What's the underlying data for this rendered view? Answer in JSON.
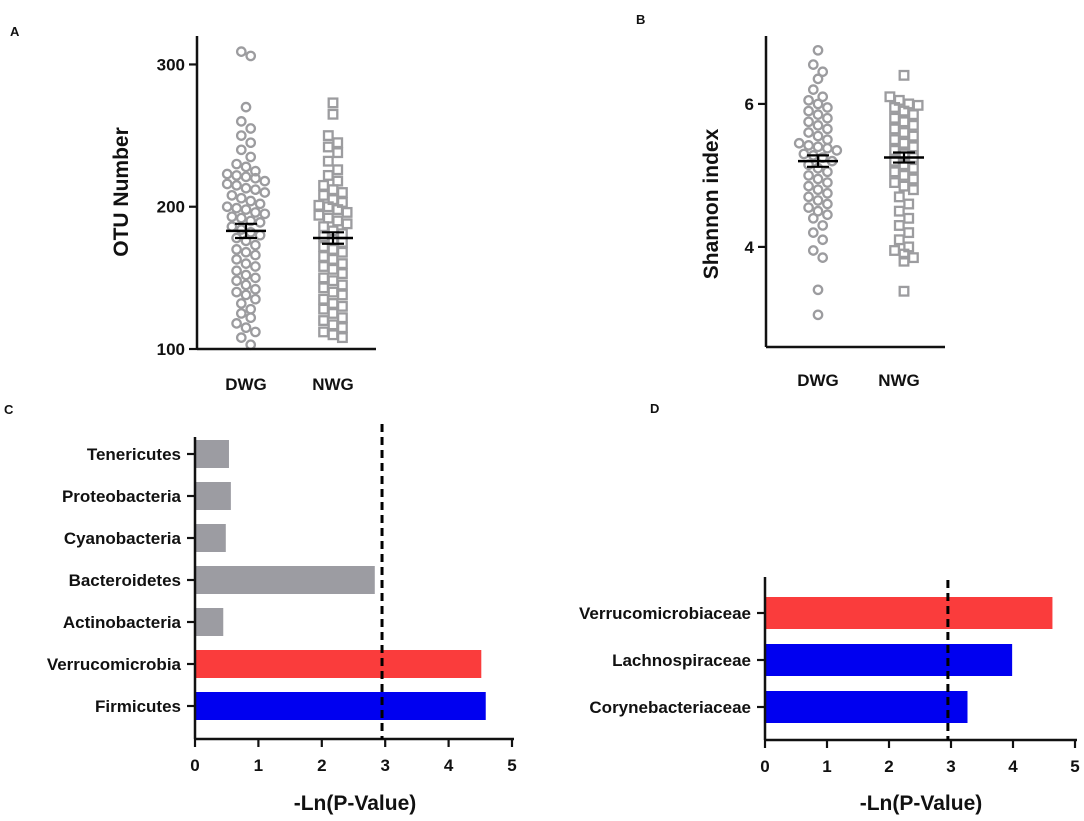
{
  "chart_data": [
    {
      "panel": "A",
      "type": "scatter",
      "title": "",
      "xlabel": "",
      "ylabel": "OTU Number",
      "categories": [
        "DWG",
        "NWG"
      ],
      "ylim": [
        100,
        320
      ],
      "yticks": [
        100,
        200,
        300
      ],
      "marker_color": "#9c9c9f",
      "mean_color": "#000000",
      "series": [
        {
          "name": "DWG",
          "marker": "circle",
          "mean": 183,
          "sem": 5,
          "values": [
            309,
            306,
            270,
            260,
            255,
            250,
            245,
            240,
            235,
            230,
            228,
            225,
            223,
            222,
            221,
            220,
            218,
            216,
            215,
            213,
            212,
            210,
            208,
            206,
            204,
            202,
            200,
            199,
            198,
            196,
            195,
            193,
            192,
            190,
            189,
            186,
            184,
            182,
            180,
            178,
            176,
            173,
            170,
            168,
            166,
            163,
            160,
            158,
            155,
            152,
            150,
            148,
            145,
            142,
            140,
            138,
            135,
            132,
            128,
            125,
            122,
            118,
            115,
            112,
            108,
            103
          ]
        },
        {
          "name": "NWG",
          "marker": "square",
          "mean": 178,
          "sem": 4,
          "values": [
            273,
            265,
            250,
            245,
            242,
            238,
            232,
            226,
            222,
            218,
            215,
            212,
            210,
            208,
            205,
            203,
            201,
            200,
            198,
            196,
            194,
            192,
            190,
            188,
            186,
            183,
            181,
            179,
            177,
            175,
            172,
            170,
            168,
            165,
            163,
            160,
            158,
            156,
            153,
            150,
            148,
            145,
            143,
            140,
            138,
            135,
            132,
            130,
            128,
            125,
            122,
            120,
            117,
            115,
            112,
            110,
            108
          ]
        }
      ]
    },
    {
      "panel": "B",
      "type": "scatter",
      "title": "",
      "xlabel": "",
      "ylabel": "Shannon index",
      "categories": [
        "DWG",
        "NWG"
      ],
      "ylim": [
        2.6,
        6.95
      ],
      "yticks": [
        4,
        6
      ],
      "marker_color": "#9c9c9f",
      "mean_color": "#000000",
      "series": [
        {
          "name": "DWG",
          "marker": "circle",
          "mean": 5.2,
          "sem": 0.08,
          "values": [
            6.75,
            6.55,
            6.45,
            6.35,
            6.2,
            6.1,
            6.05,
            6.0,
            5.95,
            5.9,
            5.85,
            5.8,
            5.75,
            5.7,
            5.65,
            5.6,
            5.55,
            5.5,
            5.45,
            5.42,
            5.4,
            5.38,
            5.35,
            5.3,
            5.28,
            5.25,
            5.2,
            5.15,
            5.1,
            5.05,
            5.0,
            4.95,
            4.9,
            4.85,
            4.8,
            4.75,
            4.7,
            4.65,
            4.6,
            4.55,
            4.5,
            4.45,
            4.4,
            4.3,
            4.2,
            4.1,
            3.95,
            3.85,
            3.4,
            3.05
          ]
        },
        {
          "name": "NWG",
          "marker": "square",
          "mean": 5.25,
          "sem": 0.07,
          "values": [
            6.4,
            6.1,
            6.05,
            6.0,
            5.98,
            5.95,
            5.9,
            5.85,
            5.8,
            5.75,
            5.7,
            5.65,
            5.6,
            5.55,
            5.5,
            5.45,
            5.4,
            5.35,
            5.3,
            5.25,
            5.2,
            5.15,
            5.1,
            5.05,
            5.0,
            4.95,
            4.9,
            4.85,
            4.8,
            4.7,
            4.6,
            4.5,
            4.4,
            4.3,
            4.2,
            4.1,
            4.0,
            3.95,
            3.9,
            3.85,
            3.8,
            3.38
          ]
        }
      ]
    },
    {
      "panel": "C",
      "type": "bar",
      "orientation": "horizontal",
      "title": "",
      "xlabel": "-Ln(P-Value)",
      "ylabel": "",
      "xlim": [
        0,
        5
      ],
      "xticks": [
        0,
        1,
        2,
        3,
        4,
        5
      ],
      "threshold": 2.95,
      "categories": [
        "Tenericutes",
        "Proteobacteria",
        "Cyanobacteria",
        "Bacteroidetes",
        "Actinobacteria",
        "Verrucomicrobia",
        "Firmicutes"
      ],
      "values": [
        0.52,
        0.55,
        0.47,
        2.82,
        0.43,
        4.5,
        4.57
      ],
      "colors": [
        "#9c9ca2",
        "#9c9ca2",
        "#9c9ca2",
        "#9c9ca2",
        "#9c9ca2",
        "#fa3c3c",
        "#0000f0"
      ]
    },
    {
      "panel": "D",
      "type": "bar",
      "orientation": "horizontal",
      "title": "",
      "xlabel": "-Ln(P-Value)",
      "ylabel": "",
      "xlim": [
        0,
        5
      ],
      "xticks": [
        0,
        1,
        2,
        3,
        4,
        5
      ],
      "threshold": 2.95,
      "categories": [
        "Verrucomicrobiaceae",
        "Lachnospiraceae",
        "Corynebacteriaceae"
      ],
      "values": [
        4.62,
        3.97,
        3.25
      ],
      "colors": [
        "#fa3c3c",
        "#0000f0",
        "#0000f0"
      ]
    }
  ]
}
